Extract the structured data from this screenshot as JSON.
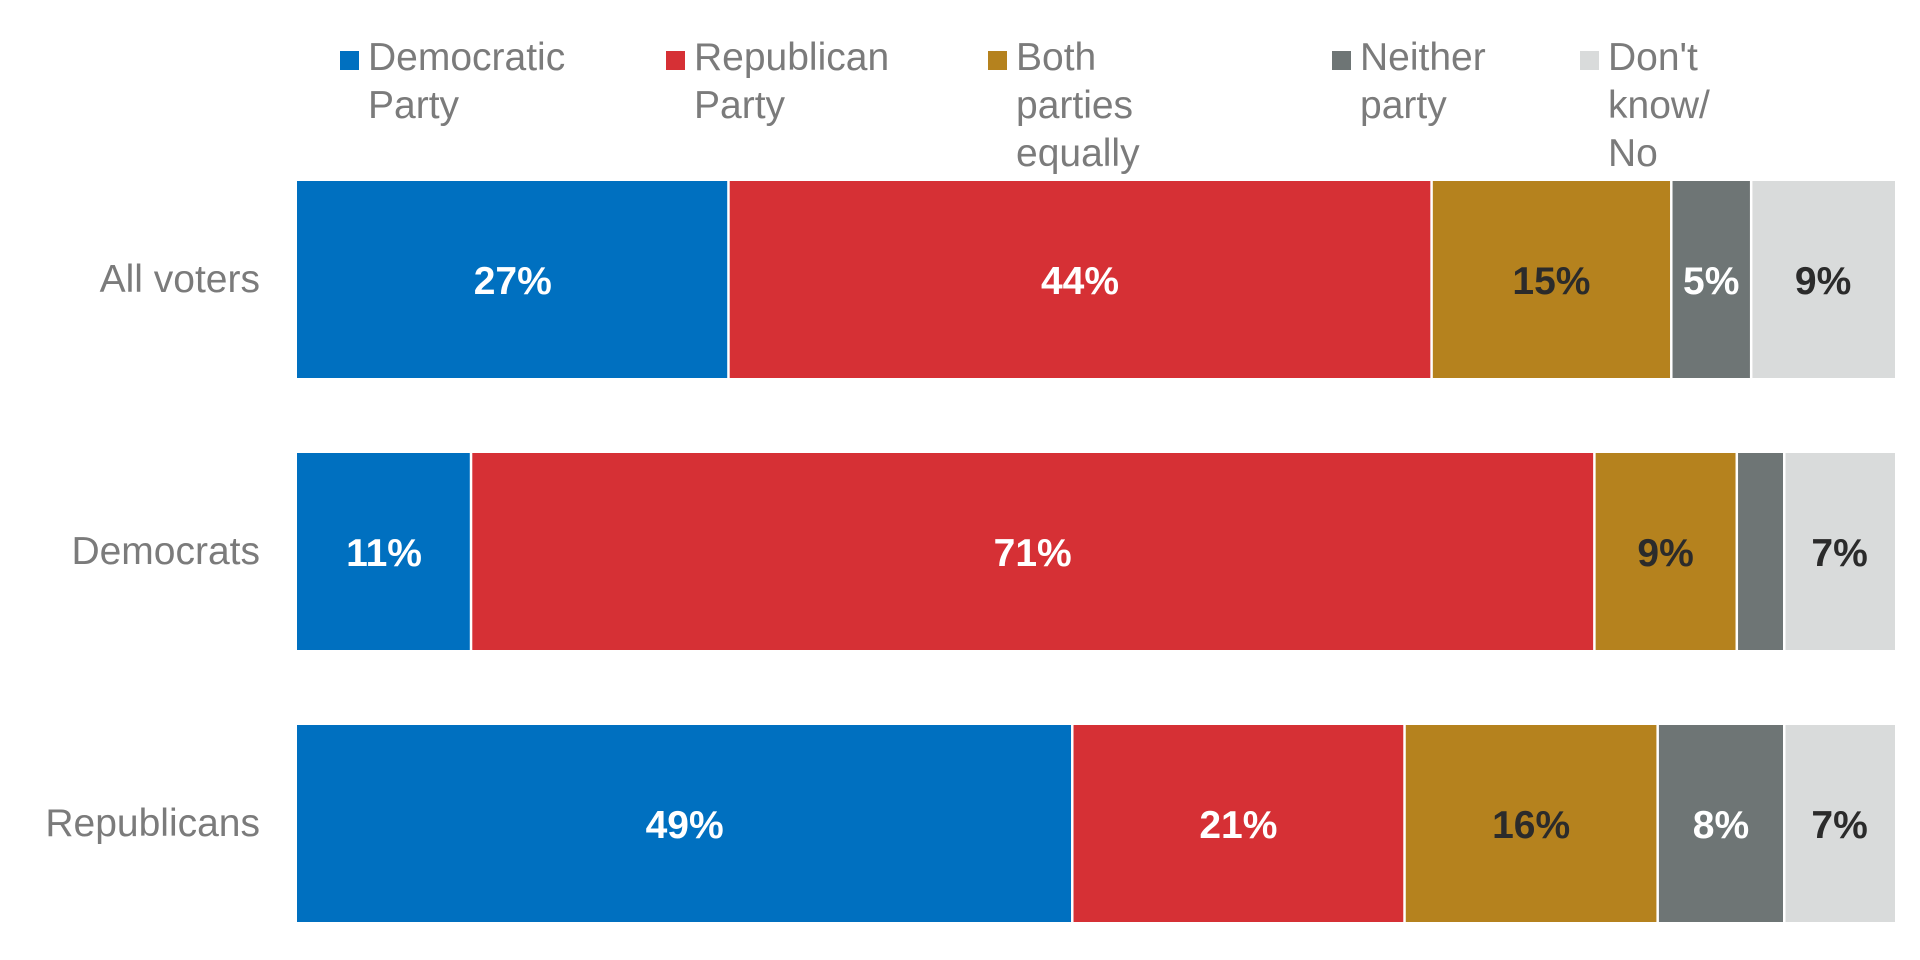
{
  "chart_data": {
    "type": "bar",
    "orientation": "horizontal",
    "stacked": true,
    "title": "",
    "xlabel": "",
    "ylabel": "",
    "xlim": [
      0,
      100
    ],
    "grid": false,
    "legend_position": "top",
    "categories": [
      "All voters",
      "Democrats",
      "Republicans"
    ],
    "series": [
      {
        "key": "dem",
        "name": "Democratic Party",
        "legend_lines": [
          "Democratic",
          "Party"
        ],
        "color": "#0070c0",
        "text_color": "#ffffff",
        "values": [
          27,
          11,
          49
        ],
        "labels": [
          "27%",
          "11%",
          "49%"
        ]
      },
      {
        "key": "rep",
        "name": "Republican Party",
        "legend_lines": [
          "Republican",
          "Party"
        ],
        "color": "#d63035",
        "text_color": "#ffffff",
        "values": [
          44,
          71,
          21
        ],
        "labels": [
          "44%",
          "71%",
          "21%"
        ]
      },
      {
        "key": "both",
        "name": "Both parties equally",
        "legend_lines": [
          "Both parties",
          "equally"
        ],
        "color": "#b5821e",
        "text_color": "#2b2b2b",
        "values": [
          15,
          9,
          16
        ],
        "labels": [
          "15%",
          "9%",
          "16%"
        ]
      },
      {
        "key": "neither",
        "name": "Neither party",
        "legend_lines": [
          "Neither",
          "party"
        ],
        "color": "#6e7575",
        "text_color": "#ffffff",
        "values": [
          5,
          3,
          8
        ],
        "labels": [
          "5%",
          "",
          "8%"
        ]
      },
      {
        "key": "dk",
        "name": "Don't know/ No opinion",
        "legend_lines": [
          "Don't know/",
          "No opinion"
        ],
        "color": "#d9dbdb",
        "text_color": "#2b2b2b",
        "values": [
          9,
          7,
          7
        ],
        "labels": [
          "9%",
          "7%",
          "7%"
        ]
      }
    ]
  }
}
